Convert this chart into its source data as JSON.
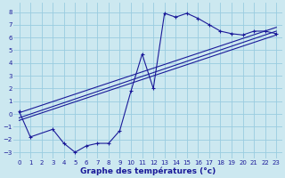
{
  "title": "Graphe des températures (°c)",
  "bg_color": "#cce8f0",
  "grid_color": "#99cce0",
  "line_color": "#1a1a99",
  "xlim": [
    -0.5,
    23.5
  ],
  "ylim": [
    -3.5,
    8.7
  ],
  "yticks": [
    -3,
    -2,
    -1,
    0,
    1,
    2,
    3,
    4,
    5,
    6,
    7,
    8
  ],
  "xticks": [
    0,
    1,
    2,
    3,
    4,
    5,
    6,
    7,
    8,
    9,
    10,
    11,
    12,
    13,
    14,
    15,
    16,
    17,
    18,
    19,
    20,
    21,
    22,
    23
  ],
  "temp_x": [
    0,
    1,
    3,
    4,
    5,
    6,
    7,
    8,
    9,
    10,
    11,
    12,
    13,
    14,
    15,
    16,
    17,
    18,
    19,
    20,
    21,
    22,
    23
  ],
  "temp_y": [
    0.2,
    -1.8,
    -1.2,
    -2.3,
    -3.0,
    -2.5,
    -2.3,
    -2.3,
    -1.3,
    1.8,
    4.7,
    2.0,
    7.9,
    7.6,
    7.9,
    7.5,
    7.0,
    6.5,
    6.3,
    6.2,
    6.5,
    6.5,
    6.3
  ],
  "line1_x": [
    0,
    23
  ],
  "line1_y": [
    -0.3,
    6.5
  ],
  "line2_x": [
    0,
    23
  ],
  "line2_y": [
    0.1,
    6.8
  ],
  "line3_x": [
    0,
    23
  ],
  "line3_y": [
    -0.5,
    6.2
  ]
}
